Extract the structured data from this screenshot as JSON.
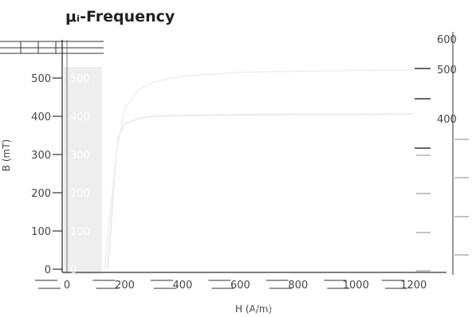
{
  "chart_data": {
    "type": "line",
    "title": "μᵢ-Frequency",
    "xlabel": "H (A/m)",
    "ylabel": "B (mT)",
    "xlim": [
      0,
      1300
    ],
    "ylim": [
      0,
      600
    ],
    "x_ticks": [
      "0",
      "200",
      "400",
      "600",
      "800",
      "1000",
      "1200"
    ],
    "y_ticks": [
      "0",
      "100",
      "200",
      "300",
      "400",
      "500"
    ],
    "right_ticks": [
      "600",
      "500",
      "400"
    ],
    "grid": false,
    "legend": "none",
    "series": [
      {
        "color": "#e8e8e8",
        "points": [
          [
            140,
            0
          ],
          [
            150,
            80
          ],
          [
            160,
            200
          ],
          [
            170,
            300
          ],
          [
            180,
            350
          ],
          [
            200,
            380
          ],
          [
            250,
            395
          ],
          [
            300,
            400
          ],
          [
            400,
            402
          ],
          [
            600,
            404
          ],
          [
            800,
            405
          ],
          [
            1000,
            405
          ],
          [
            1200,
            406
          ]
        ]
      },
      {
        "color": "#efefef",
        "points": [
          [
            130,
            0
          ],
          [
            150,
            150
          ],
          [
            170,
            300
          ],
          [
            200,
            420
          ],
          [
            250,
            470
          ],
          [
            300,
            490
          ],
          [
            400,
            505
          ],
          [
            600,
            515
          ],
          [
            800,
            518
          ],
          [
            1000,
            520
          ],
          [
            1200,
            521
          ]
        ]
      }
    ],
    "colors": {
      "axis": "#333333",
      "band": "#eeeeee",
      "ghost_text": "#ffffff"
    }
  }
}
